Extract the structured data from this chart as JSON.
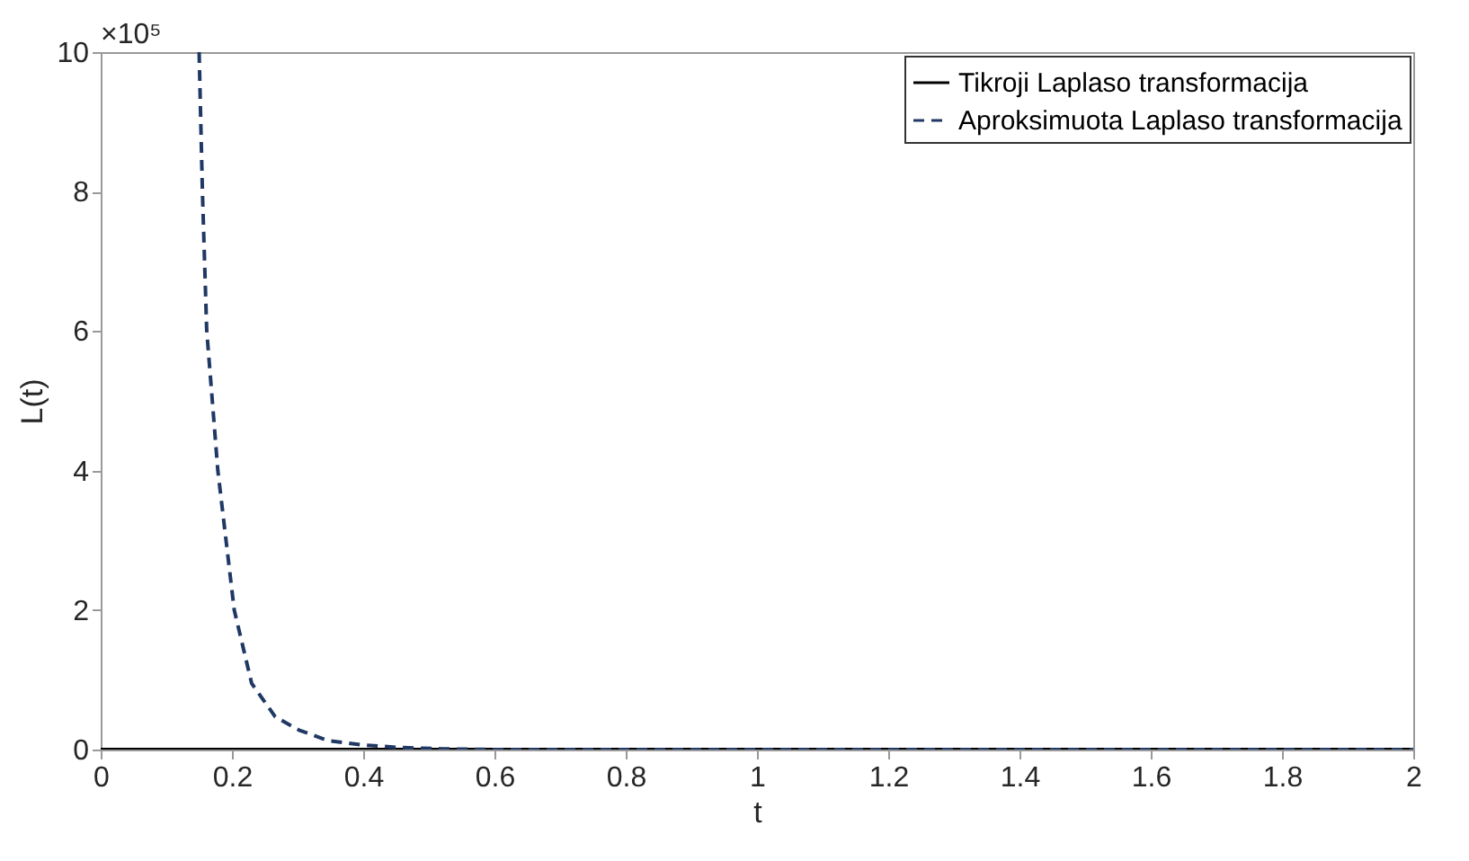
{
  "chart_data": {
    "type": "line",
    "xlabel": "t",
    "ylabel": "L(t)",
    "annotations": [
      "×10⁵"
    ],
    "xlim": [
      0,
      2
    ],
    "xticks": [
      0,
      0.2,
      0.4,
      0.6,
      0.8,
      1,
      1.2,
      1.4,
      1.6,
      1.8,
      2
    ],
    "ylim": [
      0,
      10
    ],
    "yticks": [
      0,
      2,
      4,
      6,
      8,
      10
    ],
    "grid": false,
    "legend": "top right",
    "series": [
      {
        "name": "Tikroji Laplaso transformacija",
        "color": "#000000",
        "line_style": "solid",
        "x": [
          0,
          0.5,
          1,
          1.5,
          2
        ],
        "values": [
          0,
          0,
          0,
          0,
          0
        ]
      },
      {
        "name": "Aproksimuota Laplaso transformacija",
        "color": "#203864",
        "line_style": "dashed",
        "x": [
          0.15,
          0.155,
          0.1615,
          0.1785,
          0.2035,
          0.23,
          0.266,
          0.302,
          0.346,
          0.395,
          0.453,
          0.52,
          0.6,
          0.8,
          1,
          1.2,
          1.4,
          1.6,
          1.8,
          2
        ],
        "values": [
          10,
          8.0,
          6.02,
          4.0,
          2.0,
          0.95,
          0.47,
          0.28,
          0.13,
          0.07,
          0.03,
          0.01,
          0,
          0,
          0,
          0,
          0,
          0,
          0,
          0
        ]
      }
    ]
  }
}
